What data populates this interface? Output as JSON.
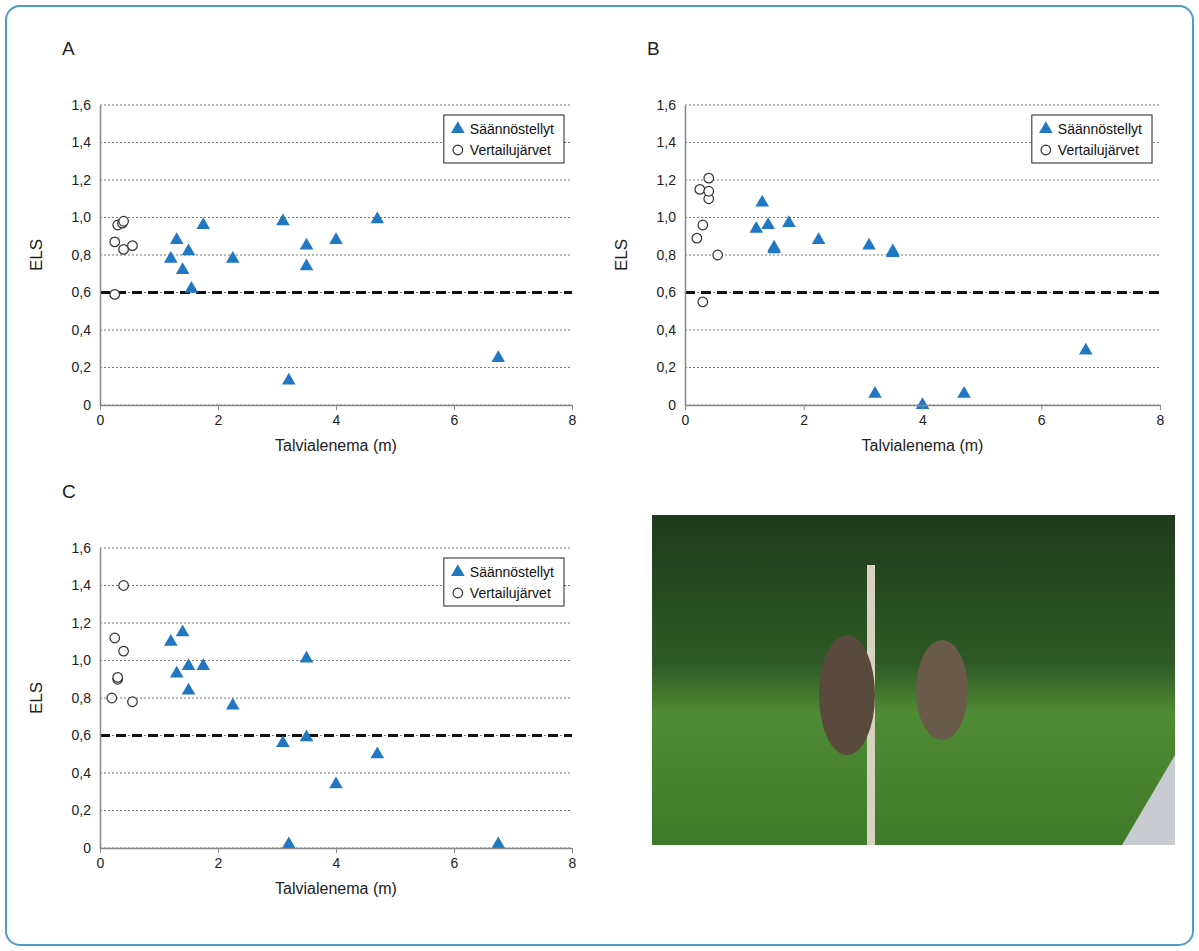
{
  "chart_data": [
    {
      "type": "scatter",
      "title": "A",
      "x_label": "Talvialenema (m)",
      "y_label": "ELS",
      "xlim": [
        0,
        8
      ],
      "xticks": [
        0,
        2,
        4,
        6,
        8
      ],
      "ylim": [
        0,
        1.6
      ],
      "yticks": [
        0,
        {
          "value": 0.2,
          "label": "0,2"
        },
        {
          "value": 0.4,
          "label": "0,4"
        },
        {
          "value": 0.6,
          "label": "0,6"
        },
        {
          "value": 0.8,
          "label": "0,8"
        },
        {
          "value": 1,
          "label": "1,0"
        },
        {
          "value": 1.2,
          "label": "1,2"
        },
        {
          "value": 1.4,
          "label": "1,4"
        },
        {
          "value": 1.6,
          "label": "1,6"
        }
      ],
      "grid": true,
      "legend": "upper right",
      "reference_line": 0.6,
      "series": [
        {
          "name": "Säännöstellyt",
          "color": "#1f78c1",
          "marker": "triangle",
          "x": [
            1.2,
            1.3,
            1.4,
            1.5,
            1.55,
            1.75,
            2.25,
            3.1,
            3.2,
            3.5,
            3.5,
            4.0,
            4.7,
            6.75
          ],
          "values": [
            0.78,
            0.88,
            0.72,
            0.82,
            0.62,
            0.96,
            0.78,
            0.98,
            0.13,
            0.74,
            0.85,
            0.88,
            0.99,
            0.25
          ]
        },
        {
          "name": "Vertailujärvet",
          "color": "#333333",
          "marker": "open-circle",
          "x": [
            0.25,
            0.25,
            0.3,
            0.38,
            0.4,
            0.4,
            0.55
          ],
          "values": [
            0.59,
            0.87,
            0.96,
            0.97,
            0.98,
            0.83,
            0.85
          ]
        }
      ]
    },
    {
      "type": "scatter",
      "title": "B",
      "x_label": "Talvialenema (m)",
      "y_label": "ELS",
      "xlim": [
        0,
        8
      ],
      "xticks": [
        0,
        2,
        4,
        6,
        8
      ],
      "ylim": [
        0,
        1.6
      ],
      "yticks": [
        0,
        {
          "value": 0.2,
          "label": "0,2"
        },
        {
          "value": 0.4,
          "label": "0,4"
        },
        {
          "value": 0.6,
          "label": "0,6"
        },
        {
          "value": 0.8,
          "label": "0,8"
        },
        {
          "value": 1,
          "label": "1,0"
        },
        {
          "value": 1.2,
          "label": "1,2"
        },
        {
          "value": 1.4,
          "label": "1,4"
        },
        {
          "value": 1.6,
          "label": "1,6"
        }
      ],
      "grid": true,
      "legend": "upper right",
      "reference_line": 0.6,
      "series": [
        {
          "name": "Säännöstellyt",
          "color": "#1f78c1",
          "marker": "triangle",
          "x": [
            1.2,
            1.3,
            1.4,
            1.5,
            1.5,
            1.75,
            2.25,
            3.1,
            3.2,
            3.5,
            3.5,
            4.0,
            4.7,
            6.75
          ],
          "values": [
            0.94,
            1.08,
            0.96,
            0.83,
            0.84,
            0.97,
            0.88,
            0.85,
            0.06,
            0.82,
            0.81,
            0.0,
            0.06,
            0.29
          ]
        },
        {
          "name": "Vertailujärvet",
          "color": "#333333",
          "marker": "open-circle",
          "x": [
            0.2,
            0.25,
            0.3,
            0.3,
            0.4,
            0.4,
            0.4,
            0.55
          ],
          "values": [
            0.89,
            1.15,
            0.96,
            0.55,
            1.1,
            1.14,
            1.21,
            0.8
          ]
        }
      ]
    },
    {
      "type": "scatter",
      "title": "C",
      "x_label": "Talvialenema (m)",
      "y_label": "ELS",
      "xlim": [
        0,
        8
      ],
      "xticks": [
        0,
        2,
        4,
        6,
        8
      ],
      "ylim": [
        0,
        1.6
      ],
      "yticks": [
        0,
        {
          "value": 0.2,
          "label": "0,2"
        },
        {
          "value": 0.4,
          "label": "0,4"
        },
        {
          "value": 0.6,
          "label": "0,6"
        },
        {
          "value": 0.8,
          "label": "0,8"
        },
        {
          "value": 1,
          "label": "1,0"
        },
        {
          "value": 1.2,
          "label": "1,2"
        },
        {
          "value": 1.4,
          "label": "1,4"
        },
        {
          "value": 1.6,
          "label": "1,6"
        }
      ],
      "grid": true,
      "legend": "upper right",
      "reference_line": 0.6,
      "series": [
        {
          "name": "Säännöstellyt",
          "color": "#1f78c1",
          "marker": "triangle",
          "x": [
            1.2,
            1.3,
            1.4,
            1.5,
            1.5,
            1.75,
            2.25,
            3.1,
            3.2,
            3.5,
            3.5,
            4.0,
            4.7,
            6.75
          ],
          "values": [
            1.1,
            0.93,
            1.15,
            0.97,
            0.84,
            0.97,
            0.76,
            0.56,
            0.02,
            1.01,
            0.59,
            0.34,
            0.5,
            0.02
          ]
        },
        {
          "name": "Vertailujärvet",
          "color": "#333333",
          "marker": "open-circle",
          "x": [
            0.2,
            0.25,
            0.3,
            0.3,
            0.4,
            0.4,
            0.55
          ],
          "values": [
            0.8,
            1.12,
            0.9,
            0.91,
            1.05,
            1.4,
            0.78
          ]
        }
      ]
    }
  ]
}
